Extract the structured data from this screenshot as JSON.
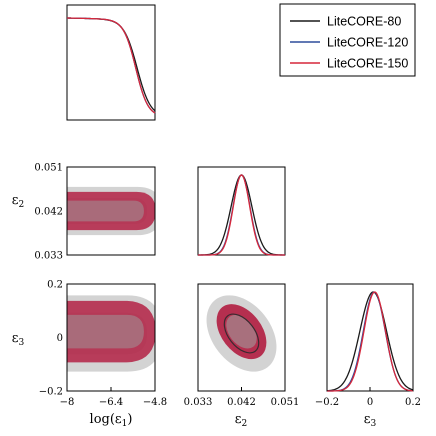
{
  "chart_data": {
    "type": "corner",
    "parameters": [
      {
        "key": "eps1",
        "tex_label": "log(ε₁)",
        "base": "log(ε",
        "sub": "1",
        "close": ")",
        "range": [
          -8,
          -4.8
        ],
        "ticks": [
          "-8",
          "-6.4",
          "-4.8"
        ]
      },
      {
        "key": "eps2",
        "tex_label": "ε₂",
        "base": "ε",
        "sub": "2",
        "close": "",
        "range": [
          0.033,
          0.051
        ],
        "ticks": [
          "0.033",
          "0.042",
          "0.051"
        ]
      },
      {
        "key": "eps3",
        "tex_label": "ε₃",
        "base": "ε",
        "sub": "3",
        "close": "",
        "range": [
          -0.2,
          0.2
        ],
        "ticks": [
          "-0.2",
          "0",
          "0.2"
        ]
      }
    ],
    "series": [
      {
        "name": "LiteCORE-80",
        "color": "#1a1a1a",
        "fill_outer": "#d3d3d3",
        "fill_inner": "#b3b3b3",
        "eps1_plateau": -5.45,
        "eps1_width": 0.24,
        "eps2_mean": 0.042,
        "eps2_sigma": 0.00215,
        "eps3_mean": 0.015,
        "eps3_sigma": 0.062
      },
      {
        "name": "LiteCORE-120",
        "color": "#2d4d9c",
        "eps1_plateau": -5.5,
        "eps1_width": 0.22,
        "eps2_mean": 0.042,
        "eps2_sigma": 0.00175,
        "eps3_mean": 0.02,
        "eps3_sigma": 0.051
      },
      {
        "name": "LiteCORE-150",
        "color": "#d6273a",
        "fill_outer": "#b52f4f",
        "fill_inner": "#a8707d",
        "eps1_plateau": -5.5,
        "eps1_width": 0.22,
        "eps2_mean": 0.042,
        "eps2_sigma": 0.0017,
        "eps3_mean": 0.022,
        "eps3_sigma": 0.05
      }
    ],
    "legend_position": "top-right"
  }
}
